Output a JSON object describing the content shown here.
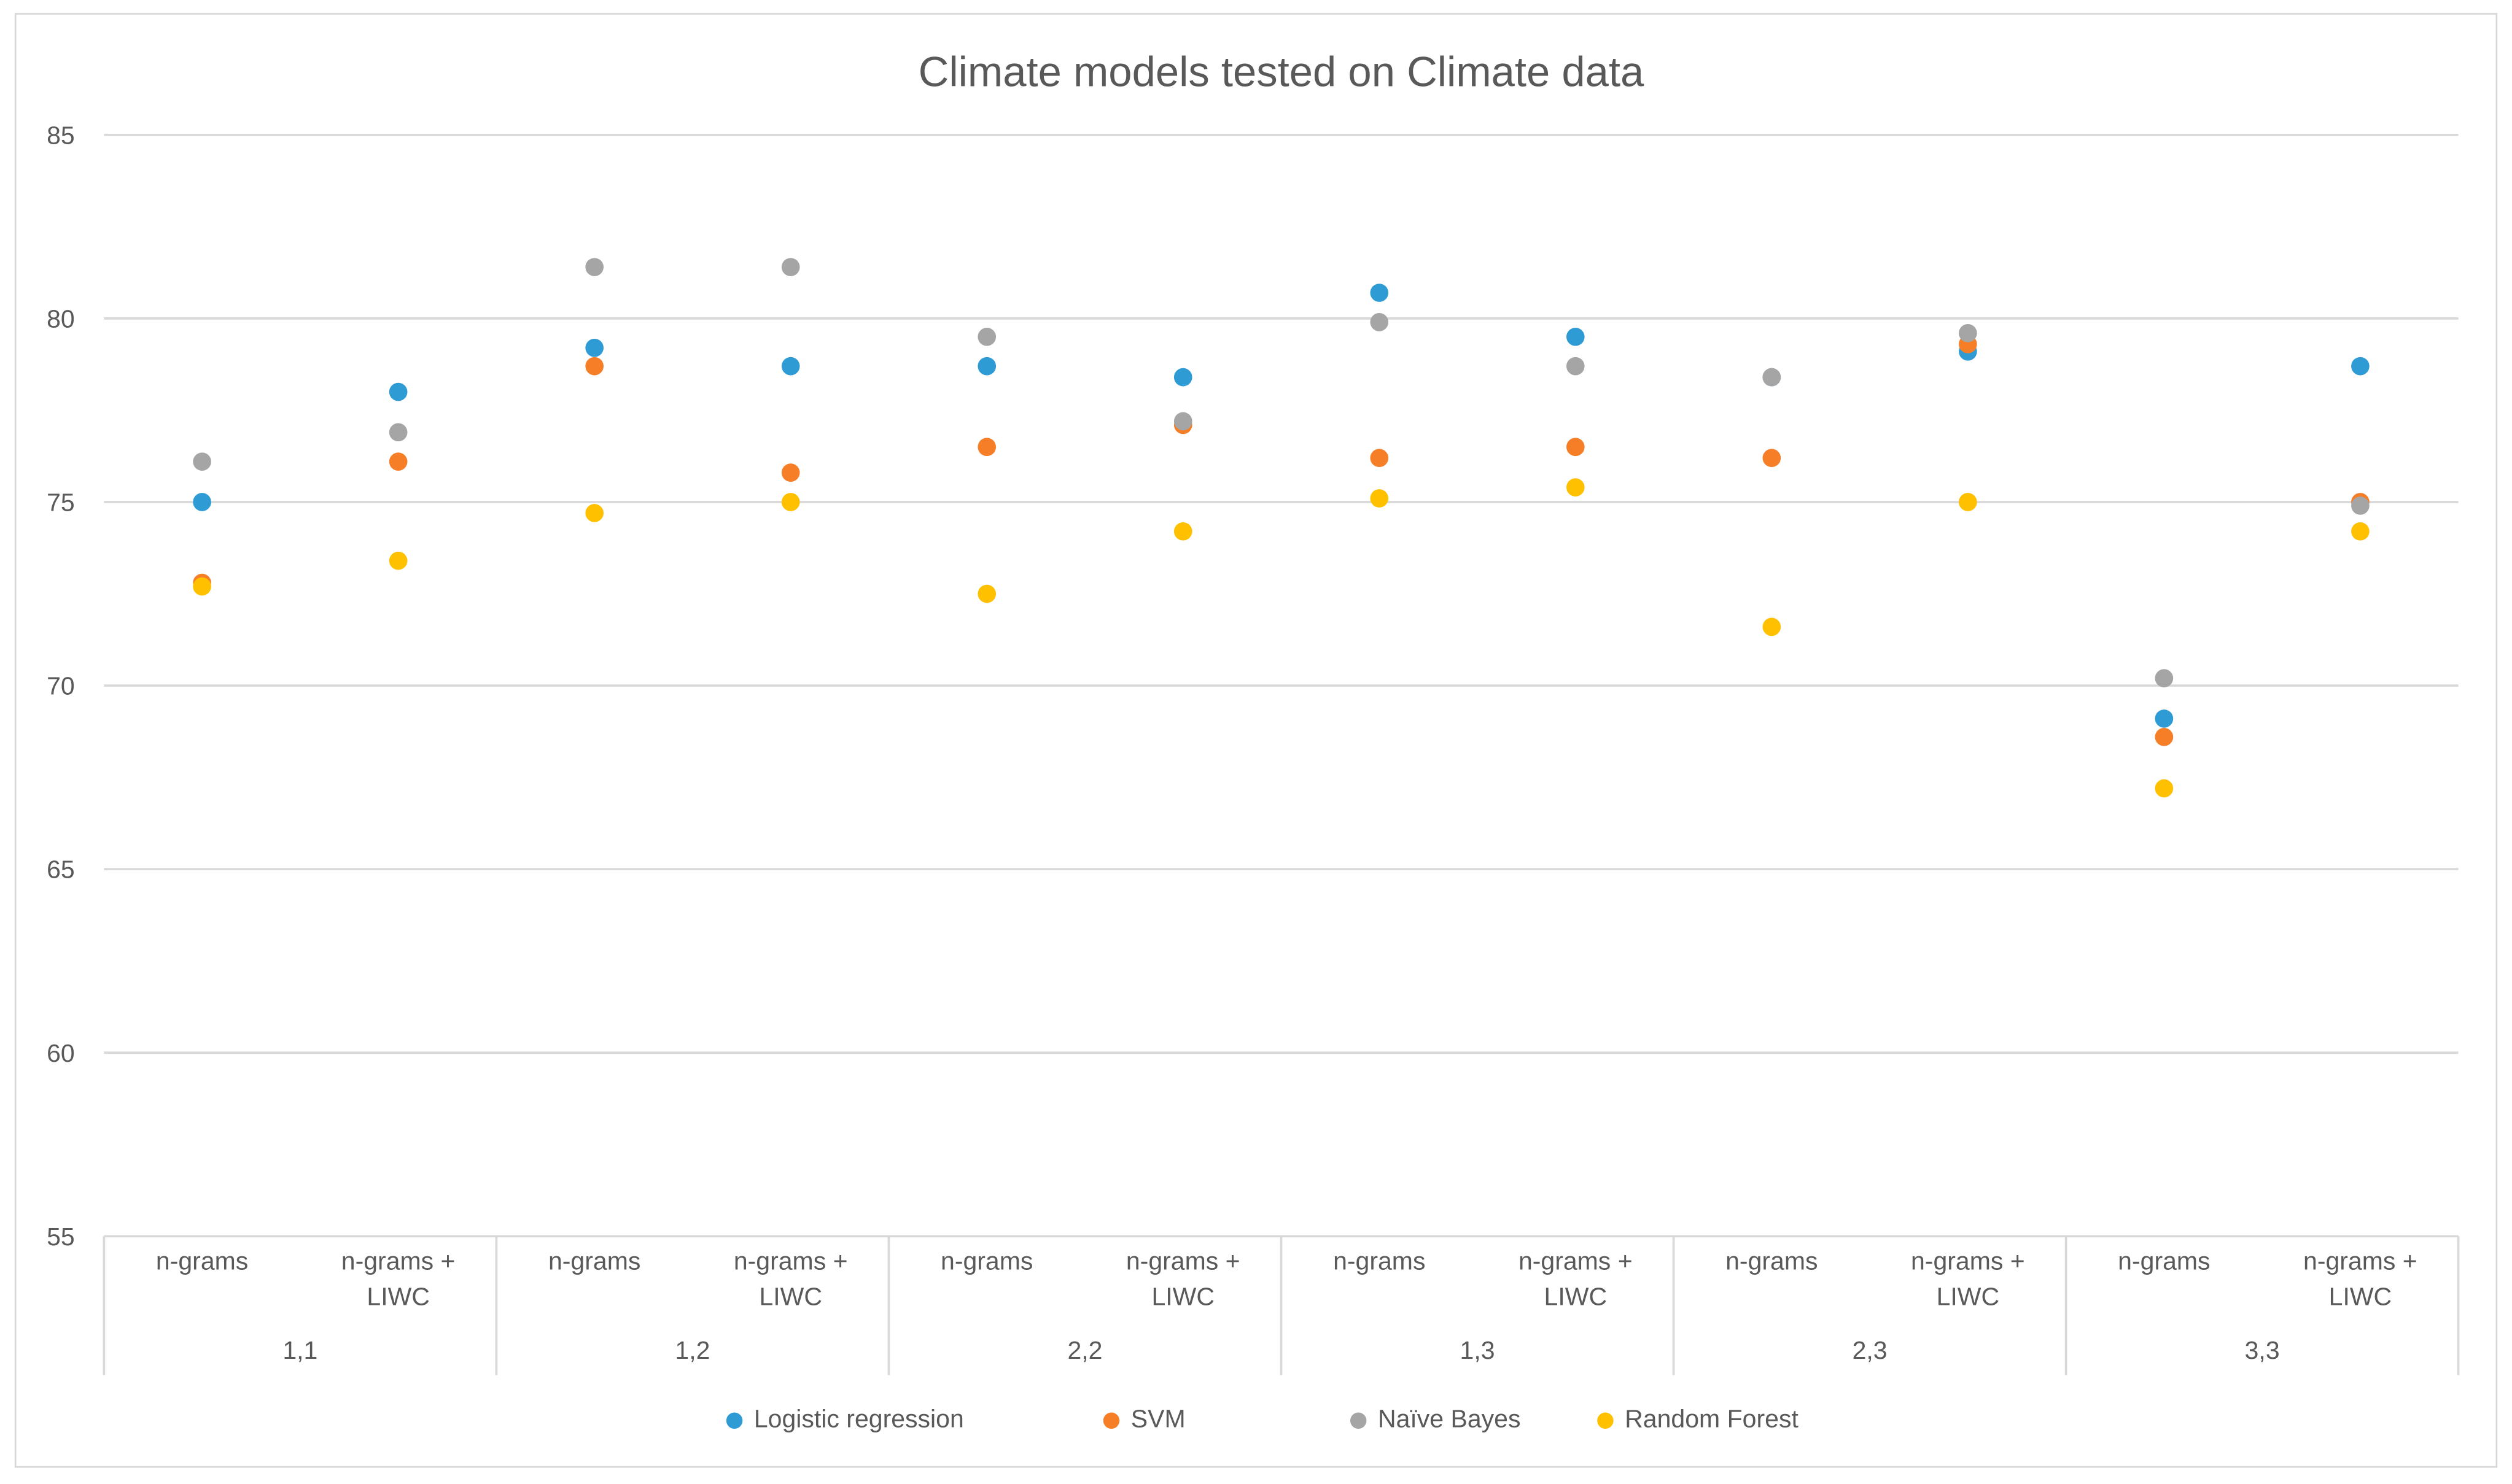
{
  "window": {
    "background": "#ffffff",
    "border_color": "#d7d7d7"
  },
  "chart_data": {
    "type": "scatter",
    "title": "Climate models tested on Climate data",
    "title_color": "#595959",
    "xlabel": "",
    "ylabel": "",
    "ylim": [
      55,
      85
    ],
    "yticks": [
      55,
      60,
      65,
      70,
      75,
      80,
      85
    ],
    "grid": true,
    "gridline_color": "#d9d9d9",
    "axis_text_color": "#595959",
    "legend_position": "bottom",
    "groups": [
      "1,1",
      "1,2",
      "2,2",
      "1,3",
      "2,3",
      "3,3"
    ],
    "subcategories": [
      "n-grams",
      "n-grams + LIWC"
    ],
    "subcategory_lines": [
      [
        "n-grams"
      ],
      [
        "n-grams +",
        "LIWC"
      ]
    ],
    "series": [
      {
        "name": "Logistic regression",
        "color": "#2e9bd5",
        "values": [
          75.0,
          78.0,
          79.2,
          78.7,
          78.7,
          78.4,
          80.7,
          79.5,
          78.4,
          79.1,
          69.1,
          78.7
        ]
      },
      {
        "name": "SVM",
        "color": "#f57e27",
        "values": [
          72.8,
          76.1,
          78.7,
          75.8,
          76.5,
          77.1,
          76.2,
          76.5,
          76.2,
          79.3,
          68.6,
          75.0
        ]
      },
      {
        "name": "Naïve Bayes",
        "color": "#a5a5a5",
        "values": [
          76.1,
          76.9,
          81.4,
          81.4,
          79.5,
          77.2,
          79.9,
          78.7,
          78.4,
          79.6,
          70.2,
          74.9
        ]
      },
      {
        "name": "Random Forest",
        "color": "#ffc000",
        "values": [
          72.7,
          73.4,
          74.7,
          75.0,
          72.5,
          74.2,
          75.1,
          75.4,
          71.6,
          75.0,
          67.2,
          74.2
        ]
      }
    ]
  }
}
